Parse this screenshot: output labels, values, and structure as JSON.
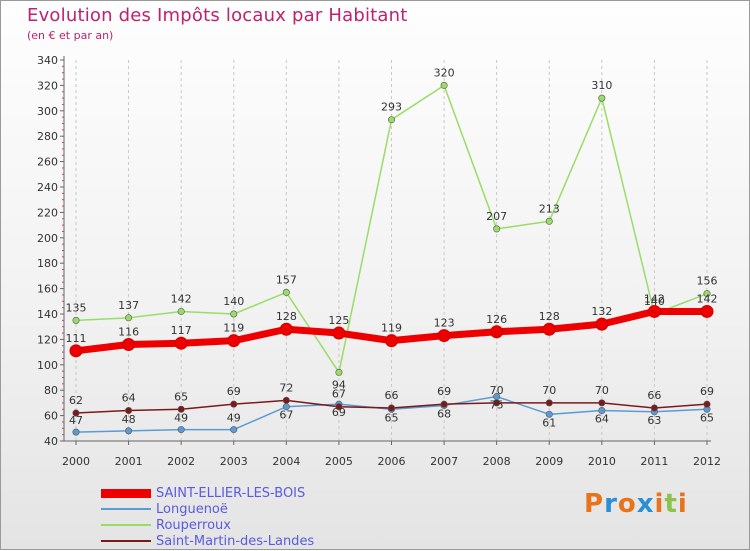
{
  "header": {
    "title": "Evolution des Impôts locaux par Habitant",
    "subtitle": "(en € et par an)"
  },
  "logo": {
    "text": "Proxiti",
    "letters": [
      "P",
      "r",
      "o",
      "x",
      "i",
      "t",
      "i"
    ],
    "colors": [
      "#e8731a",
      "#2a8fd4",
      "#e8731a",
      "#2a8fd4",
      "#e8731a",
      "#8bc34a",
      "#e8731a"
    ]
  },
  "chart_data": {
    "type": "line",
    "title": "Evolution des Impôts locaux par Habitant",
    "subtitle": "(en € et par an)",
    "xlabel": "",
    "ylabel": "",
    "x": [
      "2000",
      "2001",
      "2002",
      "2003",
      "2004",
      "2005",
      "2006",
      "2007",
      "2008",
      "2009",
      "2010",
      "2011",
      "2012"
    ],
    "ylim": [
      40,
      340
    ],
    "yticks": [
      40,
      60,
      80,
      100,
      120,
      140,
      160,
      180,
      200,
      220,
      240,
      260,
      280,
      300,
      320,
      340
    ],
    "grid": "vertical",
    "legend_position": "bottom-left",
    "series": [
      {
        "name": "SAINT-ELLIER-LES-BOIS",
        "color": "#ee0000",
        "values": [
          111,
          116,
          117,
          119,
          128,
          125,
          119,
          123,
          126,
          128,
          132,
          142,
          142
        ],
        "labels": [
          "111",
          "116",
          "117",
          "119",
          "128",
          "125",
          "119",
          "123",
          "126",
          "128",
          "132",
          "142",
          "142"
        ]
      },
      {
        "name": "Longuenoë",
        "color": "#5b9bd5",
        "values": [
          47,
          48,
          49,
          49,
          67,
          69,
          65,
          68,
          75,
          61,
          64,
          63,
          65
        ],
        "labels": [
          "47",
          "48",
          "49",
          "49",
          "67",
          "69",
          "65",
          "68",
          "75",
          "61",
          "64",
          "63",
          "65"
        ]
      },
      {
        "name": "Rouperroux",
        "color": "#99dd66",
        "values": [
          135,
          137,
          142,
          140,
          157,
          94,
          293,
          320,
          207,
          213,
          310,
          140,
          156
        ],
        "labels": [
          "135",
          "137",
          "142",
          "140",
          "157",
          "94",
          "293",
          "320",
          "207",
          "213",
          "310",
          "140",
          "156"
        ]
      },
      {
        "name": "Saint-Martin-des-Landes",
        "color": "#7a1a1a",
        "values": [
          62,
          64,
          65,
          69,
          72,
          67,
          66,
          69,
          70,
          70,
          70,
          66,
          69
        ],
        "labels": [
          "62",
          "64",
          "65",
          "69",
          "72",
          "67",
          "66",
          "69",
          "70",
          "70",
          "70",
          "66",
          "69"
        ]
      }
    ]
  }
}
